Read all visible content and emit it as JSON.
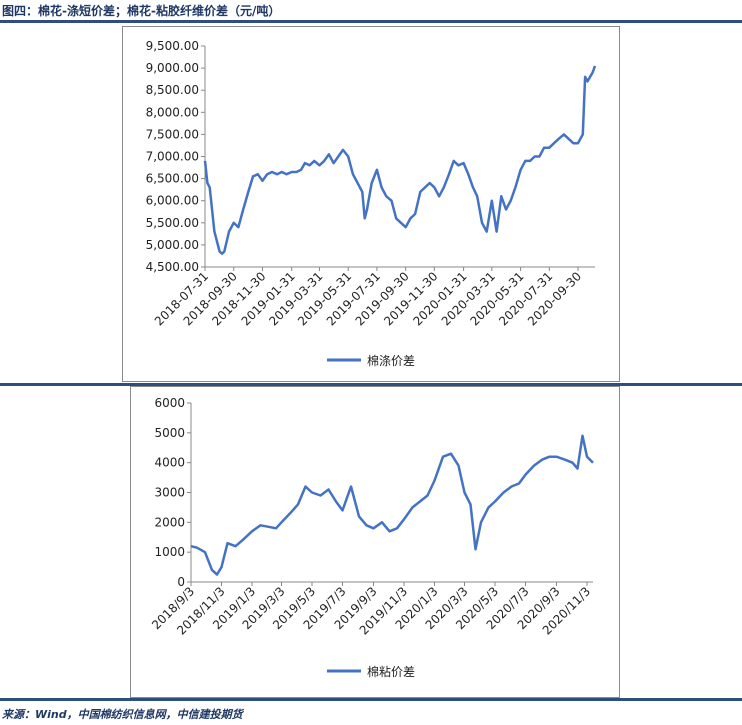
{
  "figure_title": "图四：棉花-涤短价差；棉花-粘胶纤维价差（元/吨）",
  "source": "来源：Wind，中国棉纺织信息网，中信建投期货",
  "colors": {
    "line": "#4472c4",
    "rule": "#2e4f7e"
  },
  "chart_data": [
    {
      "type": "line",
      "legend": "棉涤价差",
      "legend_position": "bottom",
      "grid": false,
      "ylim": [
        4500,
        9500
      ],
      "yticks": [
        "9,500.00",
        "9,000.00",
        "8,500.00",
        "8,000.00",
        "7,500.00",
        "7,000.00",
        "6,500.00",
        "6,000.00",
        "5,500.00",
        "5,000.00",
        "4,500.00"
      ],
      "xticks": [
        "2018-07-31",
        "2018-09-30",
        "2018-11-30",
        "2019-01-31",
        "2019-03-31",
        "2019-05-31",
        "2019-07-31",
        "2019-09-30",
        "2019-11-30",
        "2020-01-31",
        "2020-03-31",
        "2020-05-31",
        "2020-07-31",
        "2020-09-30"
      ],
      "x": [
        "2018-07-31",
        "2018-08-05",
        "2018-08-10",
        "2018-08-20",
        "2018-08-31",
        "2018-09-05",
        "2018-09-10",
        "2018-09-20",
        "2018-09-30",
        "2018-10-10",
        "2018-10-20",
        "2018-10-31",
        "2018-11-10",
        "2018-11-20",
        "2018-11-30",
        "2018-12-10",
        "2018-12-20",
        "2018-12-31",
        "2019-01-10",
        "2019-01-20",
        "2019-01-31",
        "2019-02-10",
        "2019-02-20",
        "2019-02-28",
        "2019-03-10",
        "2019-03-20",
        "2019-03-31",
        "2019-04-10",
        "2019-04-20",
        "2019-04-30",
        "2019-05-10",
        "2019-05-20",
        "2019-05-31",
        "2019-06-10",
        "2019-06-20",
        "2019-06-30",
        "2019-07-05",
        "2019-07-10",
        "2019-07-20",
        "2019-07-31",
        "2019-08-10",
        "2019-08-20",
        "2019-08-31",
        "2019-09-10",
        "2019-09-20",
        "2019-09-30",
        "2019-10-10",
        "2019-10-20",
        "2019-10-31",
        "2019-11-10",
        "2019-11-20",
        "2019-11-30",
        "2019-12-10",
        "2019-12-20",
        "2019-12-31",
        "2020-01-10",
        "2020-01-20",
        "2020-01-31",
        "2020-02-10",
        "2020-02-20",
        "2020-02-29",
        "2020-03-10",
        "2020-03-20",
        "2020-03-31",
        "2020-04-10",
        "2020-04-20",
        "2020-04-30",
        "2020-05-10",
        "2020-05-20",
        "2020-05-31",
        "2020-06-10",
        "2020-06-20",
        "2020-06-30",
        "2020-07-10",
        "2020-07-20",
        "2020-07-31",
        "2020-08-10",
        "2020-08-20",
        "2020-08-31",
        "2020-09-10",
        "2020-09-20",
        "2020-09-30",
        "2020-10-10",
        "2020-10-15",
        "2020-10-20",
        "2020-10-31",
        "2020-11-05"
      ],
      "series": [
        {
          "values": [
            6900,
            6400,
            6300,
            5300,
            4850,
            4800,
            4850,
            5300,
            5500,
            5400,
            5800,
            6200,
            6550,
            6600,
            6450,
            6600,
            6650,
            6600,
            6650,
            6600,
            6650,
            6650,
            6700,
            6850,
            6800,
            6900,
            6800,
            6900,
            7050,
            6850,
            7000,
            7150,
            7000,
            6600,
            6400,
            6200,
            5600,
            5800,
            6400,
            6700,
            6300,
            6100,
            6000,
            5600,
            5500,
            5400,
            5600,
            5700,
            6200,
            6300,
            6400,
            6300,
            6100,
            6300,
            6600,
            6900,
            6800,
            6850,
            6600,
            6300,
            6100,
            5500,
            5300,
            6000,
            5300,
            6100,
            5800,
            6000,
            6300,
            6700,
            6900,
            6900,
            7000,
            7000,
            7200,
            7200,
            7300,
            7400,
            7500,
            7400,
            7300,
            7300,
            7500,
            8800,
            8700,
            8900,
            9050
          ]
        }
      ]
    },
    {
      "type": "line",
      "legend": "棉粘价差",
      "legend_position": "bottom",
      "grid": false,
      "ylim": [
        0,
        6000
      ],
      "yticks": [
        "6000",
        "5000",
        "4000",
        "3000",
        "2000",
        "1000",
        "0"
      ],
      "xticks": [
        "2018/9/3",
        "2018/11/3",
        "2019/1/3",
        "2019/3/3",
        "2019/5/3",
        "2019/7/3",
        "2019/9/3",
        "2019/11/3",
        "2020/1/3",
        "2020/3/3",
        "2020/5/3",
        "2020/7/3",
        "2020/9/3",
        "2020/11/3"
      ],
      "x": [
        "2018-09-03",
        "2018-09-15",
        "2018-10-01",
        "2018-10-15",
        "2018-10-25",
        "2018-11-03",
        "2018-11-15",
        "2018-12-01",
        "2018-12-15",
        "2019-01-03",
        "2019-01-20",
        "2019-02-05",
        "2019-02-20",
        "2019-03-03",
        "2019-03-20",
        "2019-04-05",
        "2019-04-20",
        "2019-05-03",
        "2019-05-20",
        "2019-06-05",
        "2019-06-20",
        "2019-07-03",
        "2019-07-20",
        "2019-08-05",
        "2019-08-20",
        "2019-09-03",
        "2019-09-20",
        "2019-10-05",
        "2019-10-20",
        "2019-11-03",
        "2019-11-20",
        "2019-12-05",
        "2019-12-20",
        "2020-01-03",
        "2020-01-20",
        "2020-02-05",
        "2020-02-20",
        "2020-03-03",
        "2020-03-15",
        "2020-03-25",
        "2020-04-05",
        "2020-04-20",
        "2020-05-03",
        "2020-05-20",
        "2020-06-05",
        "2020-06-20",
        "2020-07-03",
        "2020-07-20",
        "2020-08-05",
        "2020-08-20",
        "2020-09-03",
        "2020-09-20",
        "2020-10-05",
        "2020-10-15",
        "2020-10-25",
        "2020-11-03",
        "2020-11-15"
      ],
      "series": [
        {
          "values": [
            1200,
            1150,
            1000,
            400,
            250,
            500,
            1300,
            1200,
            1400,
            1700,
            1900,
            1850,
            1800,
            2000,
            2300,
            2600,
            3200,
            3000,
            2900,
            3100,
            2700,
            2400,
            3200,
            2200,
            1900,
            1800,
            2000,
            1700,
            1800,
            2100,
            2500,
            2700,
            2900,
            3400,
            4200,
            4300,
            3900,
            3000,
            2600,
            1100,
            2000,
            2500,
            2700,
            3000,
            3200,
            3300,
            3600,
            3900,
            4100,
            4200,
            4200,
            4100,
            4000,
            3800,
            4900,
            4200,
            4000
          ]
        }
      ]
    }
  ]
}
